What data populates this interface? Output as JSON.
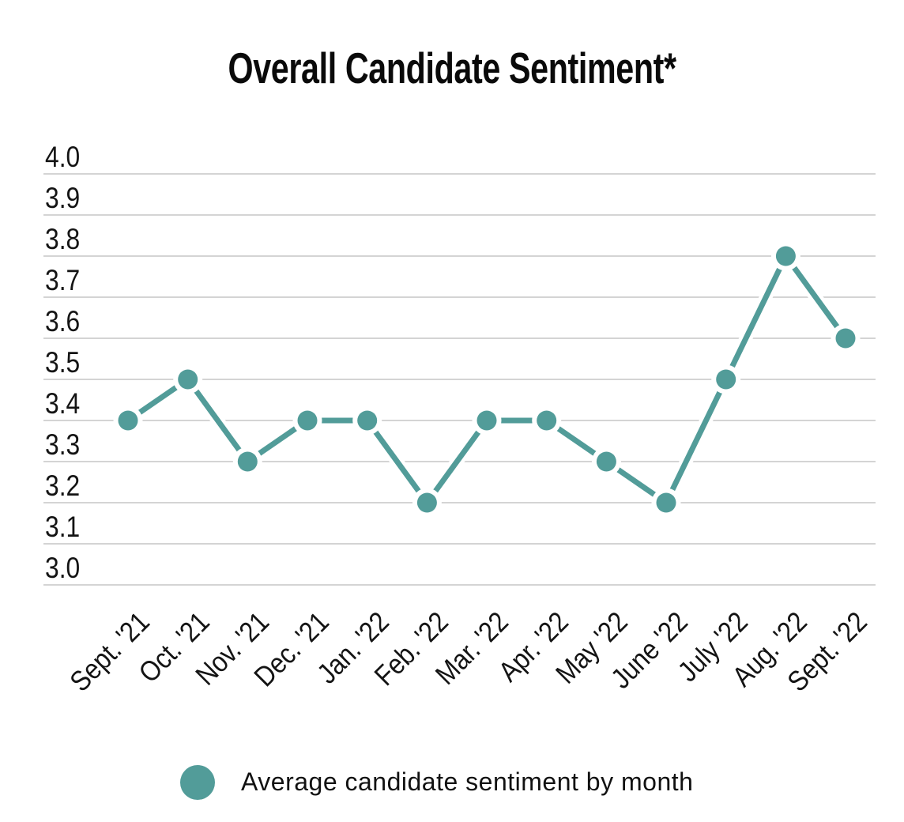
{
  "title": "Overall Candidate Sentiment*",
  "legend": {
    "label": "Average candidate sentiment by month",
    "marker_color": "#529c99"
  },
  "colors": {
    "series": "#529c99",
    "gridline": "#d4d4d4",
    "tick_text": "#141414",
    "background": "#ffffff"
  },
  "chart_data": {
    "type": "line",
    "title": "Overall Candidate Sentiment*",
    "categories": [
      "Sept. '21",
      "Oct. '21",
      "Nov. '21",
      "Dec. '21",
      "Jan. '22",
      "Feb. '22",
      "Mar. '22",
      "Apr. '22",
      "May '22",
      "June '22",
      "July '22",
      "Aug. '22",
      "Sept. '22"
    ],
    "series": [
      {
        "name": "Average candidate sentiment by month",
        "color": "#529c99",
        "values": [
          3.4,
          3.5,
          3.3,
          3.4,
          3.4,
          3.2,
          3.4,
          3.4,
          3.3,
          3.2,
          3.5,
          3.8,
          3.6
        ]
      }
    ],
    "xlabel": "",
    "ylabel": "",
    "ylim": [
      3.0,
      4.0
    ],
    "ytick_labels": [
      "4.0",
      "3.9",
      "3.8",
      "3.7",
      "3.6",
      "3.5",
      "3.4",
      "3.3",
      "3.2",
      "3.1",
      "3.0"
    ],
    "ytick_label_position": "above-gridline",
    "grid": "horizontal",
    "marker": "circle",
    "marker_halo": "white",
    "legend_position": "bottom",
    "x_tick_rotation_deg": -45
  }
}
